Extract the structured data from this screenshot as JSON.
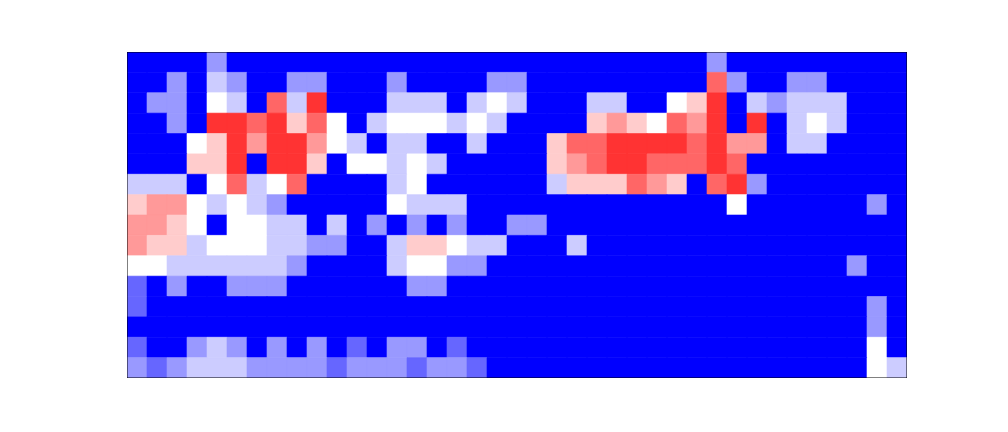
{
  "chart_data": {
    "type": "heatmap",
    "xlim": [
      0,
      39
    ],
    "ylim": [
      0,
      16
    ],
    "xticks": [],
    "yticks": [],
    "tick_labels": false,
    "zlim": [
      0,
      1
    ],
    "cells": [
      [
        0,
        0,
        0,
        0,
        0.3,
        0,
        0,
        0,
        0,
        0,
        0,
        0,
        0,
        0,
        0,
        0,
        0,
        0,
        0,
        0,
        0,
        0,
        0,
        0,
        0,
        0,
        0,
        0,
        0,
        0.3,
        0,
        0,
        0,
        0,
        0,
        0,
        0,
        0,
        0
      ],
      [
        0,
        0,
        0.3,
        0,
        0.4,
        0.3,
        0,
        0,
        0.3,
        0.3,
        0,
        0,
        0,
        0.3,
        0,
        0,
        0,
        0,
        0.3,
        0.3,
        0,
        0,
        0,
        0,
        0,
        0,
        0,
        0,
        0,
        0.8,
        0.3,
        0,
        0,
        0.3,
        0.3,
        0,
        0,
        0,
        0
      ],
      [
        0,
        0.3,
        0.3,
        0,
        0.5,
        0.4,
        0,
        0.8,
        0.4,
        0.9,
        0,
        0,
        0,
        0.4,
        0.4,
        0.4,
        0,
        0.4,
        0.5,
        0.4,
        0,
        0,
        0,
        0.4,
        0.4,
        0,
        0,
        0.5,
        0.6,
        0.9,
        0,
        0.4,
        0.3,
        0.4,
        0.4,
        0.4,
        0,
        0,
        0
      ],
      [
        0,
        0,
        0.3,
        0,
        0.9,
        0.9,
        0.8,
        0.9,
        0.6,
        0.8,
        0.5,
        0,
        0.4,
        0.5,
        0.5,
        0.5,
        0.4,
        0.5,
        0.4,
        0,
        0,
        0,
        0,
        0.6,
        0.7,
        0.6,
        0.5,
        0.8,
        0.7,
        0.9,
        0,
        0.9,
        0,
        0.4,
        0.5,
        0.4,
        0,
        0,
        0
      ],
      [
        0,
        0,
        0,
        0.5,
        0.6,
        0.9,
        0.7,
        0.9,
        0.9,
        0.7,
        0.5,
        0.4,
        0,
        0.4,
        0.4,
        0,
        0,
        0.4,
        0,
        0,
        0,
        0.6,
        0.8,
        0.8,
        0.9,
        0.9,
        0.9,
        0.9,
        0.8,
        0.9,
        0.7,
        0.7,
        0,
        0.4,
        0.4,
        0,
        0,
        0,
        0
      ],
      [
        0,
        0,
        0,
        0.6,
        0.6,
        0.9,
        0,
        0.9,
        0.9,
        0.6,
        0,
        0.5,
        0.5,
        0.4,
        0.5,
        0.4,
        0,
        0,
        0,
        0,
        0,
        0.6,
        0.7,
        0.8,
        0.9,
        0.9,
        0.8,
        0.8,
        0.8,
        0.9,
        0.8,
        0,
        0,
        0,
        0,
        0,
        0,
        0,
        0
      ],
      [
        0.4,
        0.4,
        0.4,
        0,
        0.5,
        0.8,
        0.4,
        0.5,
        0.8,
        0,
        0,
        0,
        0,
        0.4,
        0.5,
        0,
        0,
        0,
        0,
        0,
        0,
        0.4,
        0.6,
        0.6,
        0.6,
        0.8,
        0.7,
        0.6,
        0,
        0.8,
        0.9,
        0.3,
        0,
        0,
        0,
        0,
        0,
        0,
        0
      ],
      [
        0.6,
        0.7,
        0.7,
        0.5,
        0.4,
        0.5,
        0.4,
        0.3,
        0,
        0,
        0,
        0,
        0,
        0.5,
        0.4,
        0.4,
        0.4,
        0,
        0,
        0,
        0,
        0,
        0,
        0,
        0,
        0,
        0,
        0,
        0,
        0,
        0.5,
        0,
        0,
        0,
        0,
        0,
        0,
        0.3,
        0
      ],
      [
        0.7,
        0.7,
        0.6,
        0.5,
        0,
        0.5,
        0.5,
        0.4,
        0.4,
        0,
        0.4,
        0,
        0.3,
        0,
        0.3,
        0,
        0.3,
        0,
        0,
        0.3,
        0.3,
        0,
        0,
        0,
        0,
        0,
        0,
        0,
        0,
        0,
        0,
        0,
        0,
        0,
        0,
        0,
        0,
        0,
        0
      ],
      [
        0.7,
        0.6,
        0.6,
        0.4,
        0.5,
        0.5,
        0.5,
        0.4,
        0.4,
        0.3,
        0.3,
        0,
        0,
        0.4,
        0.6,
        0.6,
        0.5,
        0.4,
        0.4,
        0,
        0,
        0,
        0.4,
        0,
        0,
        0,
        0,
        0,
        0,
        0,
        0,
        0,
        0,
        0,
        0,
        0,
        0,
        0,
        0
      ],
      [
        0.5,
        0.5,
        0.4,
        0.4,
        0.4,
        0.4,
        0.4,
        0.4,
        0.3,
        0,
        0,
        0,
        0,
        0.4,
        0.5,
        0.5,
        0.3,
        0.3,
        0,
        0,
        0,
        0,
        0,
        0,
        0,
        0,
        0,
        0,
        0,
        0,
        0,
        0,
        0,
        0,
        0,
        0,
        0.3,
        0,
        0
      ],
      [
        0.2,
        0,
        0.3,
        0,
        0,
        0.3,
        0.3,
        0.3,
        0,
        0,
        0,
        0,
        0,
        0,
        0.3,
        0.3,
        0,
        0,
        0,
        0,
        0,
        0,
        0,
        0,
        0,
        0,
        0,
        0,
        0,
        0,
        0,
        0,
        0,
        0,
        0,
        0,
        0,
        0,
        0
      ],
      [
        0.2,
        0,
        0,
        0,
        0,
        0,
        0,
        0,
        0,
        0,
        0,
        0,
        0,
        0,
        0,
        0,
        0,
        0,
        0,
        0,
        0,
        0,
        0,
        0,
        0,
        0,
        0,
        0,
        0,
        0,
        0,
        0,
        0,
        0,
        0,
        0,
        0,
        0.3,
        0
      ],
      [
        0,
        0,
        0,
        0,
        0,
        0,
        0,
        0,
        0,
        0,
        0,
        0,
        0,
        0,
        0,
        0,
        0,
        0,
        0,
        0,
        0,
        0,
        0,
        0,
        0,
        0,
        0,
        0,
        0,
        0,
        0,
        0,
        0,
        0,
        0,
        0,
        0,
        0.3,
        0
      ],
      [
        0.2,
        0,
        0,
        0.3,
        0.4,
        0.3,
        0,
        0.3,
        0,
        0.3,
        0,
        0.2,
        0,
        0.3,
        0.3,
        0,
        0.2,
        0,
        0,
        0,
        0,
        0,
        0,
        0,
        0,
        0,
        0,
        0,
        0,
        0,
        0,
        0,
        0,
        0,
        0,
        0,
        0,
        0.5,
        0
      ],
      [
        0.3,
        0.2,
        0.3,
        0.4,
        0.4,
        0.4,
        0.3,
        0.3,
        0.3,
        0.3,
        0.2,
        0.3,
        0.3,
        0.3,
        0.2,
        0.3,
        0.3,
        0.2,
        0,
        0,
        0,
        0,
        0,
        0,
        0,
        0,
        0,
        0,
        0,
        0,
        0,
        0,
        0,
        0,
        0,
        0,
        0,
        0.5,
        0.4
      ]
    ]
  }
}
